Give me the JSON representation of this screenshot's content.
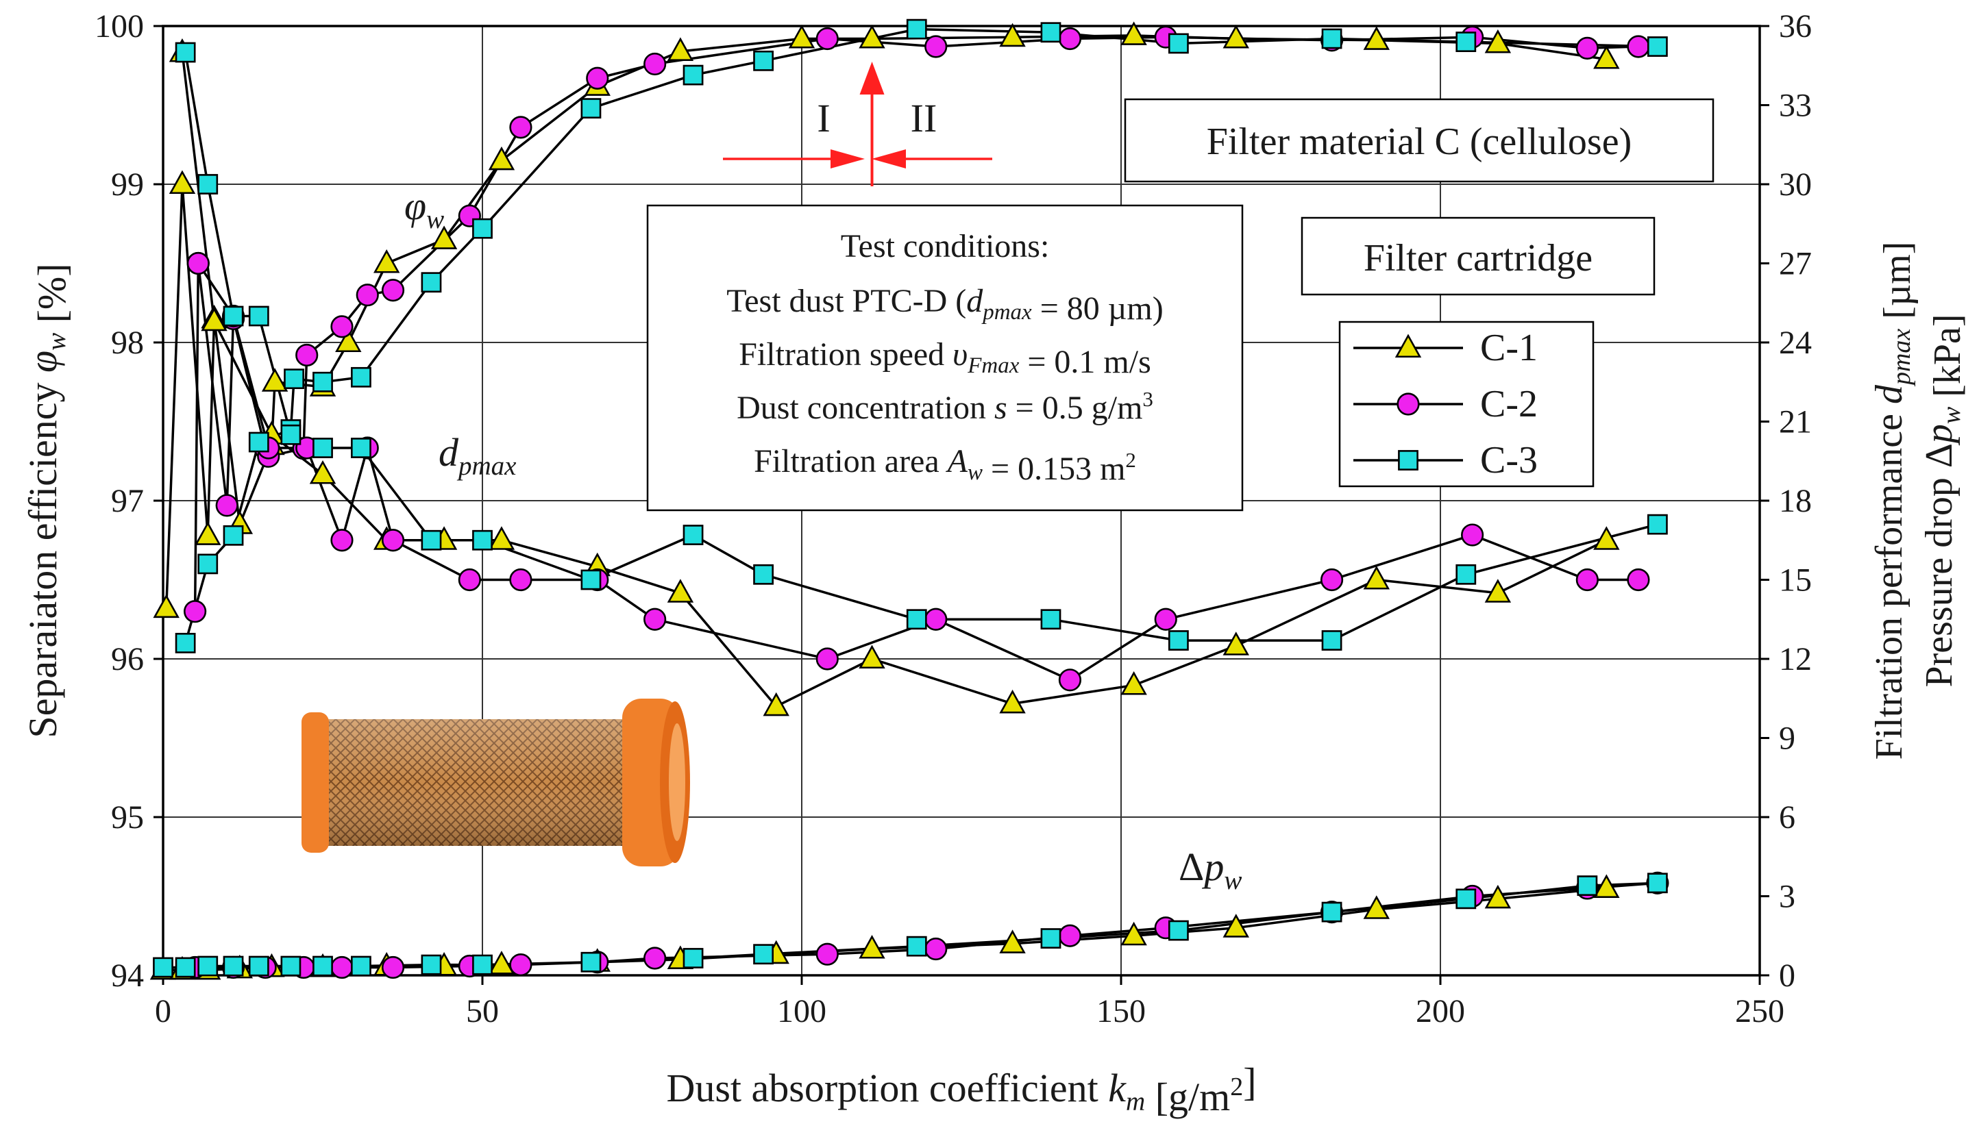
{
  "chart_data": {
    "type": "line",
    "xlabel": "Dust absorption coefficient k_m [g/m²]",
    "xlabel_parts": {
      "pre": "Dust absorption coefficient ",
      "sym": "k",
      "sub": "m",
      "post": " [g/m",
      "sup": "2",
      "end": "]"
    },
    "ylabel_left": "Separaiaton efficiency φ_w [%]",
    "ylabel_left_parts": {
      "pre": "Separaiaton efficiency ",
      "sym": "φ",
      "sub": "w",
      "post": " [%]"
    },
    "ylabel_right_1": "Filtration performance d_pmax [µm]",
    "ylabel_right_1_parts": {
      "pre": "Filtration performance ",
      "sym": "d",
      "sub": "pmax",
      "post": " [µm]"
    },
    "ylabel_right_2": "Pressure drop Δp_w [kPa]",
    "ylabel_right_2_parts": {
      "pre": "Pressure drop Δ",
      "sym": "p",
      "sub": "w",
      "post": " [kPa]"
    },
    "x_ticks": [
      "0",
      "50",
      "100",
      "150",
      "200",
      "250"
    ],
    "y_left_ticks": [
      "94",
      "95",
      "96",
      "97",
      "98",
      "99",
      "100"
    ],
    "y_right_ticks": [
      "0",
      "3",
      "6",
      "9",
      "12",
      "15",
      "18",
      "21",
      "24",
      "27",
      "30",
      "33",
      "36"
    ],
    "xlim": [
      0,
      250
    ],
    "ylim_left": [
      94,
      100
    ],
    "ylim_right": [
      0,
      36
    ],
    "grid": true,
    "legend_position": "right",
    "annotations": {
      "material_box": "Filter material C (cellulose)",
      "cartridge_box": "Filter cartridge",
      "test_title": "Test conditions:",
      "test_line1": {
        "pre": "Test dust PTC-D (",
        "sym": "d",
        "sub": "pmax",
        "post": " = 80 µm)"
      },
      "test_line2": {
        "pre": "Filtration speed ",
        "sym": "υ",
        "sub": "Fmax",
        "post": " = 0.1 m/s"
      },
      "test_line3": {
        "pre": "Dust concentration ",
        "sym": "s",
        "post": " = 0.5 g/m",
        "sup": "3"
      },
      "test_line4": {
        "pre": "Filtration area ",
        "sym": "A",
        "sub": "w",
        "post": " = 0.153 m",
        "sup": "2"
      },
      "phase_1": "I",
      "phase_2": "II",
      "curve_phi": {
        "sym": "φ",
        "sub": "w"
      },
      "curve_d": {
        "sym": "d",
        "sub": "pmax"
      },
      "curve_dp": {
        "pre": "Δ",
        "sym": "p",
        "sub": "w"
      }
    },
    "colors": {
      "C-1": "#e8e000",
      "C-2": "#ee22ee",
      "C-3": "#22dddd",
      "arrow": "#ff2020",
      "cartridge": "#f0802a"
    },
    "series": [
      {
        "name": "C-1",
        "marker": "triangle",
        "efficiency": [
          [
            0.5,
            96.32
          ],
          [
            3,
            99.0
          ],
          [
            7,
            96.78
          ],
          [
            8,
            98.15
          ],
          [
            12,
            96.85
          ],
          [
            17,
            97.35
          ],
          [
            17.5,
            97.75
          ],
          [
            25,
            97.72
          ],
          [
            29,
            98.0
          ],
          [
            35,
            98.5
          ],
          [
            44,
            98.65
          ],
          [
            53,
            99.15
          ],
          [
            68,
            99.62
          ],
          [
            81,
            99.84
          ],
          [
            100,
            99.92
          ],
          [
            111,
            99.92
          ],
          [
            133,
            99.93
          ],
          [
            152,
            99.94
          ],
          [
            168,
            99.92
          ],
          [
            190,
            99.91
          ],
          [
            209,
            99.89
          ],
          [
            226,
            99.79
          ]
        ],
        "dpmax": [
          [
            3,
            35.0
          ],
          [
            8,
            24.8
          ],
          [
            17,
            20.5
          ],
          [
            25,
            19.0
          ],
          [
            35,
            16.5
          ],
          [
            44,
            16.5
          ],
          [
            53,
            16.5
          ],
          [
            68,
            15.5
          ],
          [
            81,
            14.5
          ],
          [
            96,
            10.2
          ],
          [
            111,
            12
          ],
          [
            133,
            10.3
          ],
          [
            152,
            11
          ],
          [
            168,
            12.5
          ],
          [
            190,
            15
          ],
          [
            209,
            14.5
          ],
          [
            226,
            16.5
          ]
        ],
        "pressure": [
          [
            0,
            0.2
          ],
          [
            3,
            0.2
          ],
          [
            7,
            0.2
          ],
          [
            12,
            0.25
          ],
          [
            17,
            0.3
          ],
          [
            25,
            0.3
          ],
          [
            35,
            0.35
          ],
          [
            44,
            0.35
          ],
          [
            53,
            0.4
          ],
          [
            68,
            0.5
          ],
          [
            81,
            0.6
          ],
          [
            96,
            0.8
          ],
          [
            111,
            1.0
          ],
          [
            133,
            1.2
          ],
          [
            152,
            1.5
          ],
          [
            168,
            1.8
          ],
          [
            190,
            2.5
          ],
          [
            209,
            2.9
          ],
          [
            226,
            3.3
          ]
        ]
      },
      {
        "name": "C-2",
        "marker": "circle",
        "efficiency": [
          [
            5,
            96.3
          ],
          [
            5.5,
            98.5
          ],
          [
            10,
            96.97
          ],
          [
            11,
            98.15
          ],
          [
            16,
            97.33
          ],
          [
            16.5,
            97.28
          ],
          [
            22,
            97.33
          ],
          [
            22.5,
            97.92
          ],
          [
            28,
            98.1
          ],
          [
            32,
            98.3
          ],
          [
            36,
            98.33
          ],
          [
            48,
            98.8
          ],
          [
            56,
            99.36
          ],
          [
            68,
            99.67
          ],
          [
            77,
            99.76
          ],
          [
            104,
            99.92
          ],
          [
            121,
            99.87
          ],
          [
            142,
            99.92
          ],
          [
            157,
            99.93
          ],
          [
            183,
            99.91
          ],
          [
            205,
            99.93
          ],
          [
            223,
            99.86
          ],
          [
            231,
            99.87
          ]
        ],
        "dpmax": [
          [
            5.5,
            27
          ],
          [
            11,
            25
          ],
          [
            16.5,
            20
          ],
          [
            22.5,
            20
          ],
          [
            28,
            16.5
          ],
          [
            32,
            20
          ],
          [
            36,
            16.5
          ],
          [
            48,
            15
          ],
          [
            56,
            15
          ],
          [
            68,
            15
          ],
          [
            77,
            13.5
          ],
          [
            104,
            12
          ],
          [
            121,
            13.5
          ],
          [
            142,
            11.2
          ],
          [
            157,
            13.5
          ],
          [
            183,
            15
          ],
          [
            205,
            16.7
          ],
          [
            223,
            15
          ],
          [
            231,
            15
          ]
        ],
        "pressure": [
          [
            5,
            0.3
          ],
          [
            11,
            0.3
          ],
          [
            16,
            0.3
          ],
          [
            22,
            0.3
          ],
          [
            28,
            0.3
          ],
          [
            36,
            0.3
          ],
          [
            48,
            0.35
          ],
          [
            56,
            0.4
          ],
          [
            68,
            0.5
          ],
          [
            77,
            0.65
          ],
          [
            104,
            0.8
          ],
          [
            121,
            1.0
          ],
          [
            142,
            1.5
          ],
          [
            157,
            1.8
          ],
          [
            183,
            2.4
          ],
          [
            205,
            3.0
          ],
          [
            223,
            3.3
          ],
          [
            234,
            3.5
          ]
        ]
      },
      {
        "name": "C-3",
        "marker": "square",
        "efficiency": [
          [
            3.5,
            96.1
          ],
          [
            7,
            96.6
          ],
          [
            11,
            96.78
          ],
          [
            15,
            97.37
          ],
          [
            20,
            97.45
          ],
          [
            20.5,
            97.77
          ],
          [
            25,
            97.75
          ],
          [
            31,
            97.78
          ],
          [
            42,
            98.38
          ],
          [
            50,
            98.72
          ],
          [
            67,
            99.48
          ],
          [
            83,
            99.69
          ],
          [
            94,
            99.78
          ],
          [
            118,
            99.98
          ],
          [
            139,
            99.96
          ],
          [
            159,
            99.89
          ],
          [
            183,
            99.92
          ],
          [
            204,
            99.9
          ],
          [
            234,
            99.87
          ]
        ],
        "dpmax": [
          [
            3.5,
            35.0
          ],
          [
            7,
            30
          ],
          [
            11,
            25
          ],
          [
            15,
            25
          ],
          [
            20,
            20.5
          ],
          [
            25,
            20
          ],
          [
            31,
            20
          ],
          [
            42,
            16.5
          ],
          [
            50,
            16.5
          ],
          [
            67,
            15
          ],
          [
            83,
            16.7
          ],
          [
            94,
            15.2
          ],
          [
            118,
            13.5
          ],
          [
            139,
            13.5
          ],
          [
            159,
            12.7
          ],
          [
            183,
            12.7
          ],
          [
            204,
            15.2
          ],
          [
            234,
            17.1
          ]
        ],
        "pressure": [
          [
            0,
            0.3
          ],
          [
            3.5,
            0.3
          ],
          [
            7,
            0.35
          ],
          [
            11,
            0.35
          ],
          [
            15,
            0.35
          ],
          [
            20,
            0.35
          ],
          [
            25,
            0.35
          ],
          [
            31,
            0.35
          ],
          [
            42,
            0.4
          ],
          [
            50,
            0.4
          ],
          [
            67,
            0.5
          ],
          [
            83,
            0.65
          ],
          [
            94,
            0.8
          ],
          [
            118,
            1.1
          ],
          [
            139,
            1.4
          ],
          [
            159,
            1.7
          ],
          [
            183,
            2.4
          ],
          [
            204,
            2.9
          ],
          [
            223,
            3.4
          ],
          [
            234,
            3.5
          ]
        ]
      }
    ]
  }
}
